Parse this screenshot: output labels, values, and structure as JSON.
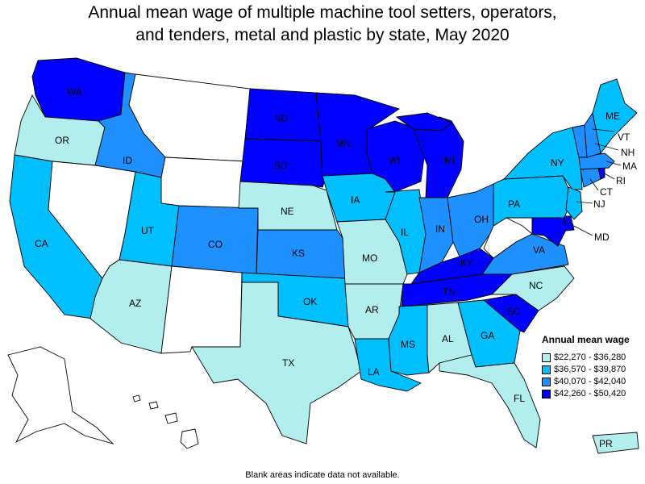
{
  "title_line1": "Annual mean wage of multiple machine tool setters, operators,",
  "title_line2": "and tenders, metal and plastic by state, May 2020",
  "legend": {
    "title": "Annual mean wage",
    "items": [
      {
        "label": "$22,270 - $36,280",
        "color": "#b2eeee"
      },
      {
        "label": "$36,570 - $39,870",
        "color": "#00bfff"
      },
      {
        "label": "$40,070 - $42,040",
        "color": "#1e90ff"
      },
      {
        "label": "$42,260 - $50,420",
        "color": "#0000ff"
      }
    ]
  },
  "no_data_color": "#ffffff",
  "footnote": "Blank areas indicate data not available.",
  "states": {
    "WA": 4,
    "OR": 1,
    "CA": 2,
    "NV": 0,
    "ID": 3,
    "MT": 0,
    "WY": 0,
    "UT": 2,
    "AZ": 1,
    "CO": 3,
    "NM": 0,
    "ND": 4,
    "SD": 4,
    "NE": 1,
    "KS": 3,
    "OK": 2,
    "TX": 1,
    "MN": 4,
    "IA": 2,
    "MO": 1,
    "AR": 1,
    "LA": 2,
    "WI": 4,
    "IL": 2,
    "MI": 4,
    "IN": 3,
    "OH": 3,
    "KY": 4,
    "TN": 4,
    "MS": 2,
    "AL": 1,
    "GA": 2,
    "FL": 1,
    "SC": 4,
    "NC": 1,
    "VA": 3,
    "WV": 0,
    "PA": 2,
    "NY": 2,
    "VT": 3,
    "NH": 3,
    "ME": 2,
    "MA": 3,
    "CT": 3,
    "RI": 4,
    "NJ": 2,
    "DE": 4,
    "MD": 4,
    "AK": 0,
    "HI": 0,
    "PR": 1
  }
}
